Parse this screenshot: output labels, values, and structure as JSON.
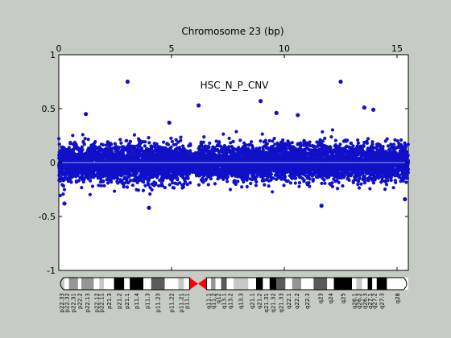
{
  "chart_data": {
    "type": "scatter",
    "title": "Chromosome 23 (bp)",
    "annotation": "HSC_N_P_CNV",
    "xlim": [
      0,
      15.5
    ],
    "ylim": [
      -1,
      1
    ],
    "x_ticks": [
      0,
      5,
      10,
      15
    ],
    "y_ticks": [
      1,
      0.5,
      0,
      -0.5,
      -1
    ],
    "x_ticks_position": "top",
    "grid": false,
    "reference_line_y": 0,
    "colors": {
      "points": "#1010c8",
      "reference_line": "#9aa6c8",
      "centromere": "#ff0000"
    },
    "density_segments": [
      {
        "x_start": 0.0,
        "x_end": 5.85,
        "center": -0.01,
        "spread": 0.085,
        "count": 2600
      },
      {
        "x_start": 6.15,
        "x_end": 15.5,
        "center": 0.0,
        "spread": 0.08,
        "count": 4200
      },
      {
        "x_start": 5.85,
        "x_end": 6.15,
        "center": 0.0,
        "spread": 0.05,
        "count": 80
      }
    ],
    "outliers": [
      {
        "x": 3.05,
        "y": 0.75
      },
      {
        "x": 12.5,
        "y": 0.75
      },
      {
        "x": 8.95,
        "y": 0.57
      },
      {
        "x": 6.2,
        "y": 0.53
      },
      {
        "x": 13.55,
        "y": 0.51
      },
      {
        "x": 9.65,
        "y": 0.46
      },
      {
        "x": 1.2,
        "y": 0.45
      },
      {
        "x": 13.95,
        "y": 0.49
      },
      {
        "x": 10.6,
        "y": 0.44
      },
      {
        "x": 4.9,
        "y": 0.37
      },
      {
        "x": 4.0,
        "y": -0.42
      },
      {
        "x": 11.65,
        "y": -0.4
      },
      {
        "x": 0.25,
        "y": -0.38
      },
      {
        "x": 15.35,
        "y": -0.34
      }
    ],
    "ideogram": {
      "bands": [
        {
          "name": "p22.33",
          "start": 0.0,
          "end": 0.25,
          "stain": "gpos25"
        },
        {
          "name": "p22.32",
          "start": 0.25,
          "end": 0.45,
          "stain": "gneg"
        },
        {
          "name": "p22.31",
          "start": 0.45,
          "end": 0.85,
          "stain": "gpos50"
        },
        {
          "name": "p22.2",
          "start": 0.85,
          "end": 1.0,
          "stain": "gneg"
        },
        {
          "name": "p22.13",
          "start": 1.0,
          "end": 1.55,
          "stain": "gpos50"
        },
        {
          "name": "p22.12",
          "start": 1.55,
          "end": 1.8,
          "stain": "gneg"
        },
        {
          "name": "p22.11",
          "start": 1.8,
          "end": 2.0,
          "stain": "gpos25"
        },
        {
          "name": "p21.3",
          "start": 2.0,
          "end": 2.45,
          "stain": "gneg"
        },
        {
          "name": "p21.2",
          "start": 2.45,
          "end": 2.9,
          "stain": "gpos100"
        },
        {
          "name": "p21.1",
          "start": 2.9,
          "end": 3.15,
          "stain": "gneg"
        },
        {
          "name": "p11.4",
          "start": 3.15,
          "end": 3.75,
          "stain": "gpos100"
        },
        {
          "name": "p11.3",
          "start": 3.75,
          "end": 4.1,
          "stain": "gneg"
        },
        {
          "name": "p11.23",
          "start": 4.1,
          "end": 4.7,
          "stain": "gpos75"
        },
        {
          "name": "p11.22",
          "start": 4.7,
          "end": 5.3,
          "stain": "gneg"
        },
        {
          "name": "p11.21",
          "start": 5.3,
          "end": 5.55,
          "stain": "gpos25"
        },
        {
          "name": "p11.1",
          "start": 5.55,
          "end": 5.8,
          "stain": "gneg"
        },
        {
          "name": "q11.1",
          "start": 6.55,
          "end": 6.75,
          "stain": "gneg"
        },
        {
          "name": "q11.2",
          "start": 6.75,
          "end": 6.95,
          "stain": "gpos50"
        },
        {
          "name": "q12",
          "start": 6.95,
          "end": 7.2,
          "stain": "gneg"
        },
        {
          "name": "q13.1",
          "start": 7.2,
          "end": 7.45,
          "stain": "gpos75"
        },
        {
          "name": "q13.2",
          "start": 7.45,
          "end": 7.75,
          "stain": "gneg"
        },
        {
          "name": "q13.3",
          "start": 7.75,
          "end": 8.4,
          "stain": "gpos25"
        },
        {
          "name": "q21.1",
          "start": 8.4,
          "end": 8.75,
          "stain": "gneg"
        },
        {
          "name": "q21.2",
          "start": 8.75,
          "end": 9.05,
          "stain": "gpos100"
        },
        {
          "name": "q21.31",
          "start": 9.05,
          "end": 9.35,
          "stain": "gneg"
        },
        {
          "name": "q21.32",
          "start": 9.35,
          "end": 9.65,
          "stain": "gpos100"
        },
        {
          "name": "q21.33",
          "start": 9.65,
          "end": 10.05,
          "stain": "gpos75"
        },
        {
          "name": "q22.1",
          "start": 10.05,
          "end": 10.35,
          "stain": "gneg"
        },
        {
          "name": "q22.2",
          "start": 10.35,
          "end": 10.75,
          "stain": "gpos50"
        },
        {
          "name": "q22.3",
          "start": 10.75,
          "end": 11.3,
          "stain": "gneg"
        },
        {
          "name": "q23",
          "start": 11.3,
          "end": 11.9,
          "stain": "gpos75"
        },
        {
          "name": "q24",
          "start": 11.9,
          "end": 12.2,
          "stain": "gneg"
        },
        {
          "name": "q25",
          "start": 12.2,
          "end": 13.0,
          "stain": "gpos100"
        },
        {
          "name": "q26.1",
          "start": 13.0,
          "end": 13.2,
          "stain": "gneg"
        },
        {
          "name": "q26.2",
          "start": 13.2,
          "end": 13.45,
          "stain": "gpos25"
        },
        {
          "name": "q26.3",
          "start": 13.45,
          "end": 13.7,
          "stain": "gneg"
        },
        {
          "name": "q27.1",
          "start": 13.7,
          "end": 13.9,
          "stain": "gpos100"
        },
        {
          "name": "q27.2",
          "start": 13.9,
          "end": 14.1,
          "stain": "gneg"
        },
        {
          "name": "q27.3",
          "start": 14.1,
          "end": 14.55,
          "stain": "gpos100"
        },
        {
          "name": "q28",
          "start": 14.55,
          "end": 15.5,
          "stain": "gneg"
        }
      ],
      "centromere": [
        5.8,
        6.55
      ]
    }
  }
}
